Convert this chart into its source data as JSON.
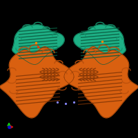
{
  "background_color": "#000000",
  "fig_width": 2.0,
  "fig_height": 2.0,
  "dpi": 100,
  "teal_color": "#1db085",
  "teal_mid": "#15906a",
  "teal_dark": "#0a5a3f",
  "orange_color": "#d96010",
  "orange_mid": "#b84e0c",
  "orange_dark": "#7a3205",
  "axis_x_color": "#cc1111",
  "axis_y_color": "#11cc11",
  "axis_z_color": "#1111cc",
  "blue_dot_color": "#8888ff",
  "orange_dot_color": "#ff8800",
  "red_dot_color": "#ff3300"
}
